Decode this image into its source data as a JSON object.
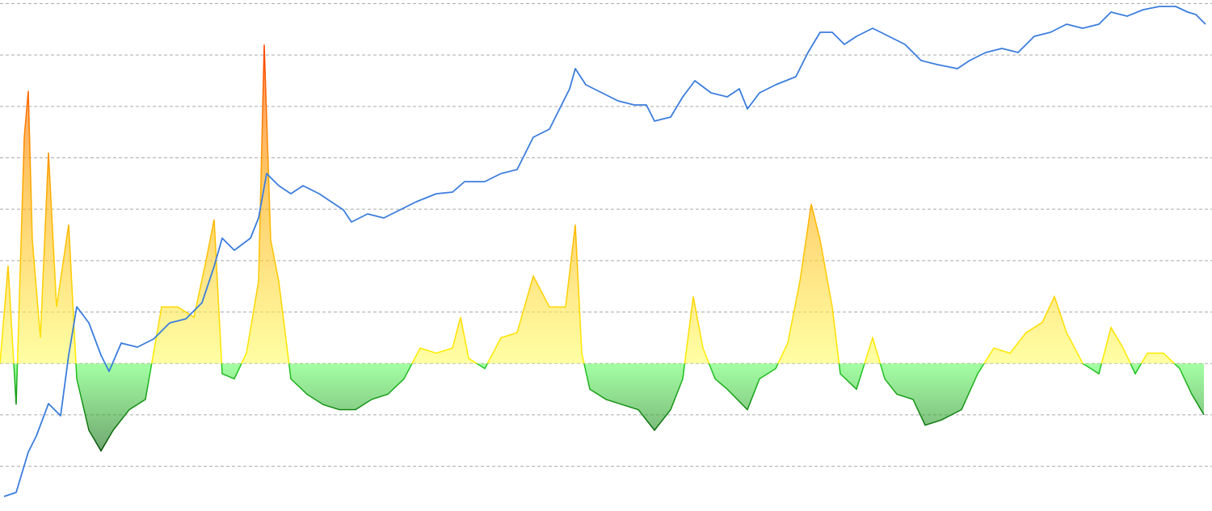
{
  "chart_data": {
    "type": "line-oscillator",
    "xlim": [
      0,
      1500
    ],
    "ylim": [
      -2.87,
      7.07
    ],
    "yticks": [
      -2,
      -1,
      0,
      1,
      2,
      3,
      4,
      5,
      6,
      7
    ],
    "y2lim": [
      0,
      633
    ],
    "grid": true,
    "series": [
      {
        "type": "area",
        "color": "#ffe600",
        "x": [
          0,
          10,
          20,
          30,
          35,
          40,
          50,
          60,
          70,
          85,
          95,
          110,
          125,
          140,
          160,
          180,
          200,
          220,
          240,
          255,
          265,
          275,
          290,
          305,
          320,
          327,
          335,
          345,
          360,
          380,
          400,
          420,
          440,
          460,
          480,
          500,
          520,
          540,
          560,
          570,
          580,
          600,
          620,
          640,
          660,
          680,
          700,
          712,
          720,
          730,
          750,
          770,
          790,
          810,
          830,
          845,
          858,
          870,
          885,
          900,
          925,
          940,
          960,
          975,
          990,
          1004,
          1015,
          1030,
          1040,
          1060,
          1080,
          1095,
          1110,
          1130,
          1145,
          1165,
          1190,
          1210,
          1230,
          1250,
          1270,
          1290,
          1305,
          1320,
          1340,
          1360,
          1375,
          1390,
          1405,
          1420,
          1440,
          1460,
          1475,
          1490
        ],
        "values": [
          0,
          1.9,
          -0.8,
          4.4,
          5.3,
          2.4,
          0.5,
          4.1,
          1.1,
          2.7,
          -0.3,
          -1.3,
          -1.7,
          -1.3,
          -0.9,
          -0.7,
          1.1,
          1.1,
          0.9,
          2.0,
          2.8,
          -0.2,
          -0.3,
          0.2,
          1.6,
          6.2,
          2.4,
          1.6,
          -0.3,
          -0.6,
          -0.8,
          -0.9,
          -0.9,
          -0.7,
          -0.6,
          -0.3,
          0.3,
          0.2,
          0.3,
          0.9,
          0.1,
          -0.1,
          0.5,
          0.6,
          1.7,
          1.1,
          1.1,
          2.7,
          0.2,
          -0.5,
          -0.7,
          -0.8,
          -0.9,
          -1.3,
          -0.9,
          -0.3,
          1.3,
          0.3,
          -0.3,
          -0.5,
          -0.9,
          -0.3,
          -0.1,
          0.4,
          1.6,
          3.1,
          2.4,
          1.1,
          -0.2,
          -0.5,
          0.5,
          -0.3,
          -0.6,
          -0.7,
          -1.2,
          -1.1,
          -0.9,
          -0.2,
          0.3,
          0.2,
          0.6,
          0.8,
          1.3,
          0.6,
          0,
          -0.2,
          0.7,
          0.3,
          -0.2,
          0.2,
          0.2,
          -0.1,
          -0.6,
          -1.0
        ]
      },
      {
        "type": "line",
        "axis": "y2",
        "color": "#3b7ddd",
        "x": [
          5,
          20,
          35,
          45,
          60,
          75,
          85,
          95,
          110,
          125,
          135,
          150,
          170,
          190,
          210,
          230,
          250,
          265,
          275,
          290,
          310,
          320,
          330,
          345,
          360,
          375,
          395,
          410,
          425,
          435,
          455,
          475,
          495,
          515,
          540,
          560,
          575,
          600,
          620,
          640,
          660,
          680,
          695,
          705,
          712,
          725,
          745,
          765,
          785,
          800,
          810,
          830,
          845,
          860,
          880,
          900,
          915,
          925,
          940,
          960,
          985,
          1000,
          1015,
          1030,
          1045,
          1060,
          1080,
          1100,
          1120,
          1140,
          1160,
          1185,
          1200,
          1220,
          1240,
          1260,
          1280,
          1300,
          1320,
          1340,
          1360,
          1375,
          1395,
          1415,
          1435,
          1455,
          1470,
          1480,
          1492
        ],
        "values": [
          18,
          23,
          73,
          93,
          133,
          118,
          193,
          253,
          233,
          193,
          173,
          208,
          203,
          213,
          233,
          238,
          258,
          303,
          338,
          323,
          338,
          363,
          418,
          403,
          393,
          403,
          393,
          383,
          373,
          358,
          368,
          363,
          373,
          383,
          393,
          395,
          408,
          408,
          418,
          423,
          463,
          473,
          503,
          523,
          548,
          528,
          518,
          508,
          503,
          503,
          483,
          488,
          513,
          533,
          518,
          513,
          523,
          498,
          518,
          528,
          538,
          568,
          593,
          593,
          578,
          588,
          598,
          588,
          578,
          558,
          553,
          548,
          558,
          568,
          573,
          568,
          588,
          593,
          603,
          598,
          603,
          618,
          613,
          621,
          625,
          625,
          618,
          615,
          603
        ]
      }
    ]
  }
}
